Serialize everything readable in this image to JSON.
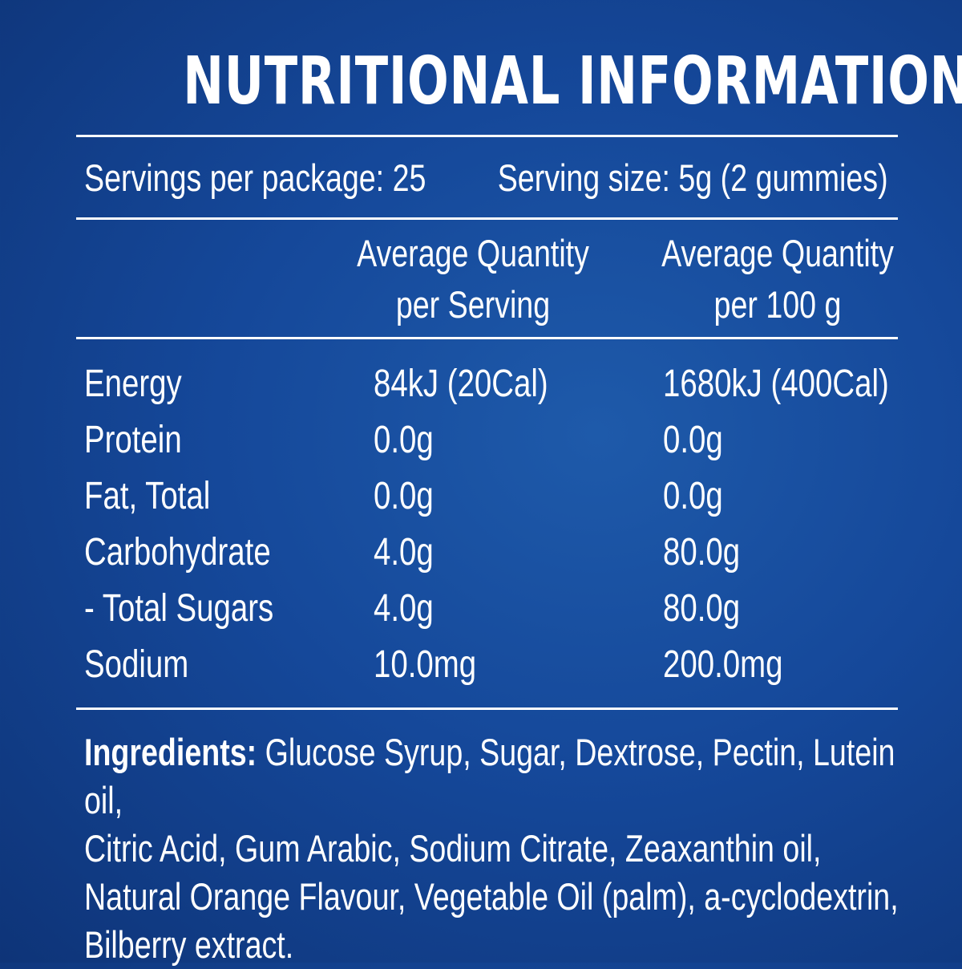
{
  "panel": {
    "title": "NUTRITIONAL INFORMATION",
    "servings_per_package": "Servings per package: 25",
    "serving_size": "Serving size: 5g (2 gummies)",
    "columns": [
      {
        "line1": "Average Quantity",
        "line2": "per Serving"
      },
      {
        "line1": "Average Quantity",
        "line2": "per 100 g"
      }
    ],
    "rows": [
      {
        "name": "Energy",
        "per_serving": "84kJ (20Cal)",
        "per_100g": "1680kJ (400Cal)"
      },
      {
        "name": "Protein",
        "per_serving": "0.0g",
        "per_100g": "0.0g"
      },
      {
        "name": "Fat, Total",
        "per_serving": "0.0g",
        "per_100g": "0.0g"
      },
      {
        "name": "Carbohydrate",
        "per_serving": "4.0g",
        "per_100g": "80.0g"
      },
      {
        "name": "- Total Sugars",
        "per_serving": "4.0g",
        "per_100g": "80.0g"
      },
      {
        "name": "Sodium",
        "per_serving": "10.0mg",
        "per_100g": "200.0mg"
      }
    ],
    "ingredients_label": "Ingredients:",
    "ingredients_line1": "Glucose Syrup, Sugar, Dextrose, Pectin, Lutein oil,",
    "ingredients_line2": "Citric Acid, Gum Arabic, Sodium Citrate, Zeaxanthin oil,",
    "ingredients_line3": "Natural Orange Flavour, Vegetable Oil (palm), a-cyclodextrin,",
    "ingredients_line4": "Bilberry extract."
  },
  "colors": {
    "background": "#15489a",
    "text": "#ffffff"
  }
}
